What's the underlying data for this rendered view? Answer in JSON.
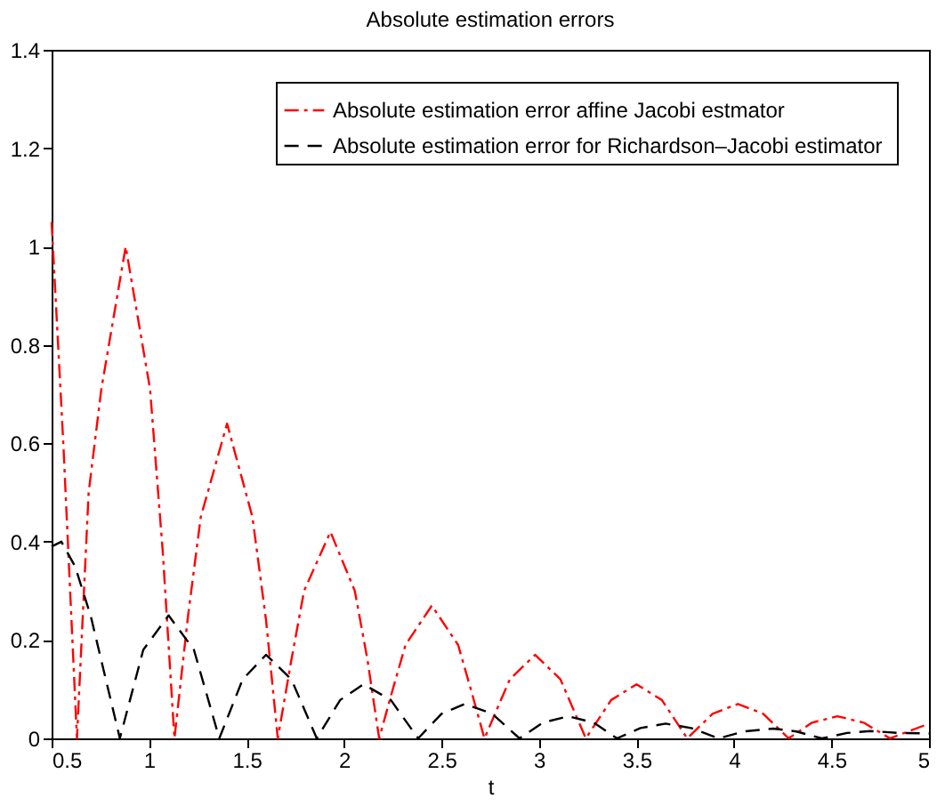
{
  "chart_data": {
    "type": "line",
    "title": "Absolute  estimation errors",
    "xlabel": "t",
    "xlim": [
      0.5,
      5
    ],
    "ylim": [
      0,
      1.4
    ],
    "xticks": [
      0.5,
      1,
      1.5,
      2,
      2.5,
      3,
      3.5,
      4,
      4.5,
      5
    ],
    "yticks": [
      0,
      0.2,
      0.4,
      0.6,
      0.8,
      1,
      1.2,
      1.4
    ],
    "grid": false,
    "legend": "top right",
    "marker": "none",
    "series": [
      {
        "name": "Absolute  estimation error affine Jacobi estmator",
        "color": "#ff0000",
        "line_style": "dashdot",
        "x": [
          0.5,
          0.56,
          0.63,
          0.69,
          0.755,
          0.88,
          1.005,
          1.07,
          1.13,
          1.2,
          1.265,
          1.4,
          1.53,
          1.6,
          1.66,
          1.73,
          1.795,
          1.93,
          2.055,
          2.12,
          2.18,
          2.25,
          2.315,
          2.45,
          2.585,
          2.65,
          2.72,
          2.85,
          2.98,
          3.11,
          3.24,
          3.37,
          3.5,
          3.63,
          3.76,
          3.89,
          4.02,
          4.15,
          4.28,
          4.4,
          4.53,
          4.665,
          4.8,
          5
        ],
        "values": [
          1.05,
          0.6,
          0,
          0.5,
          0.71,
          1.0,
          0.71,
          0.38,
          0,
          0.25,
          0.45,
          0.64,
          0.45,
          0.24,
          0,
          0.16,
          0.3,
          0.42,
          0.3,
          0.16,
          0,
          0.1,
          0.19,
          0.27,
          0.19,
          0.1,
          0,
          0.12,
          0.17,
          0.12,
          0,
          0.078,
          0.11,
          0.078,
          0,
          0.05,
          0.07,
          0.05,
          0,
          0.032,
          0.045,
          0.032,
          0,
          0.03
        ]
      },
      {
        "name": "Absolute  estimation error for Richardson–Jacobi estimator",
        "color": "#000000",
        "line_style": "dashed",
        "x": [
          0.5,
          0.55,
          0.62,
          0.7,
          0.85,
          0.97,
          1.1,
          1.23,
          1.36,
          1.48,
          1.6,
          1.73,
          1.86,
          1.98,
          2.1,
          2.24,
          2.38,
          2.5,
          2.62,
          2.76,
          2.9,
          3.02,
          3.15,
          3.28,
          3.4,
          3.52,
          3.65,
          3.78,
          3.92,
          4.05,
          4.2,
          4.32,
          4.45,
          4.58,
          4.7,
          4.85,
          5
        ],
        "values": [
          0.39,
          0.4,
          0.35,
          0.25,
          0,
          0.18,
          0.25,
          0.18,
          0,
          0.12,
          0.17,
          0.12,
          0,
          0.078,
          0.11,
          0.078,
          0,
          0.05,
          0.07,
          0.05,
          0,
          0.032,
          0.045,
          0.032,
          0,
          0.021,
          0.03,
          0.021,
          0,
          0.014,
          0.02,
          0.014,
          0,
          0.011,
          0.015,
          0.011,
          0.01
        ]
      }
    ]
  }
}
